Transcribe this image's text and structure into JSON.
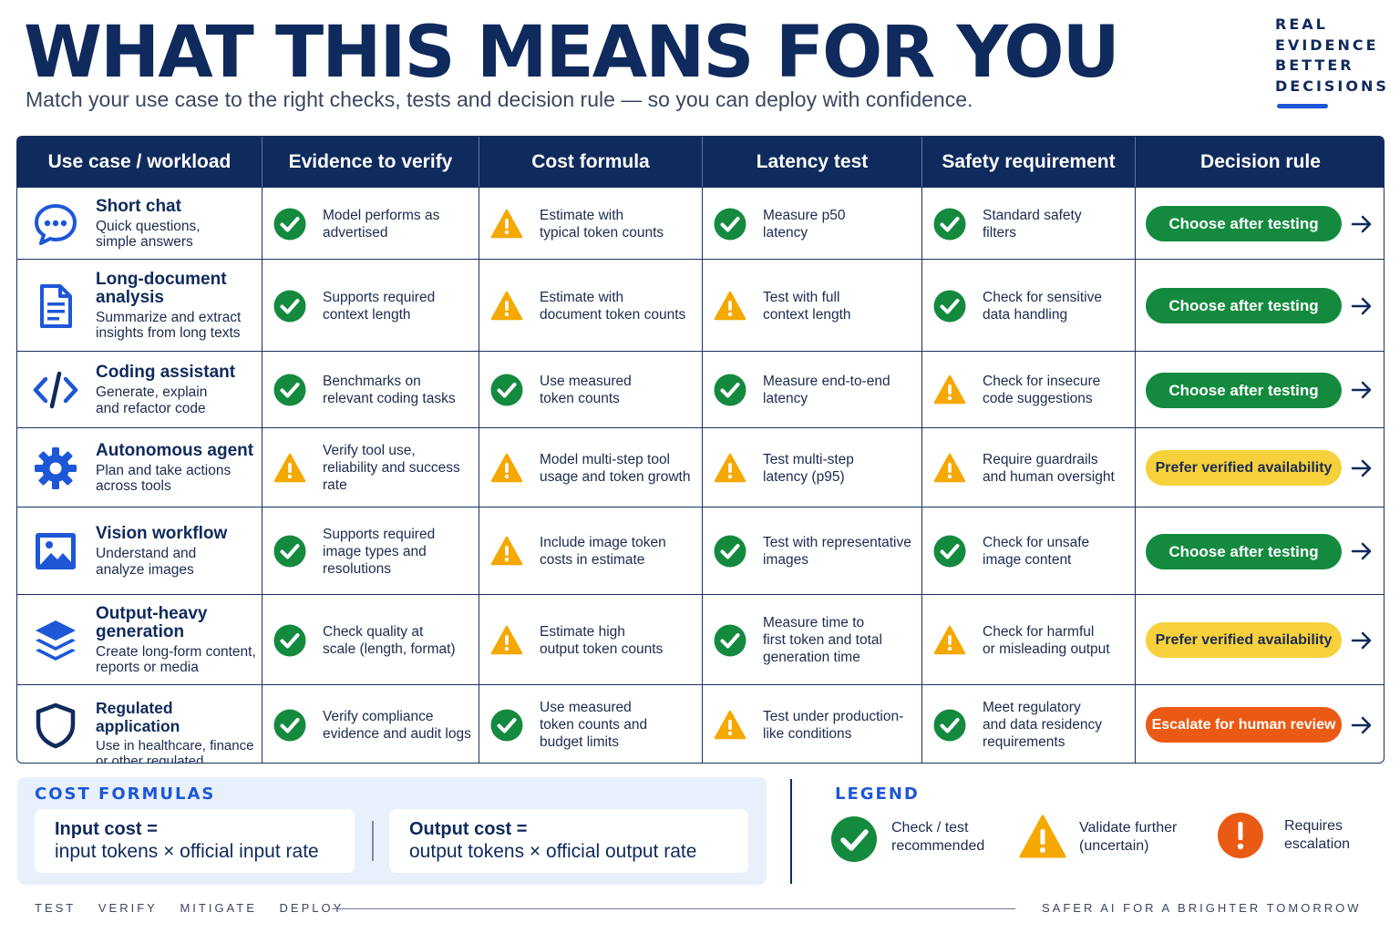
{
  "header": {
    "title": "WHAT THIS MEANS FOR YOU",
    "subtitle": "Match your use case to the right checks, tests and decision rule — so you can deploy with confidence.",
    "tagline": [
      "REAL",
      "EVIDENCE",
      "BETTER",
      "DECISIONS"
    ]
  },
  "columns": [
    "Use case  /  workload",
    "Evidence to verify",
    "Cost formula",
    "Latency test",
    "Safety requirement",
    "Decision rule"
  ],
  "rows": [
    {
      "icon": "chat-bubble-icon",
      "title": "Short chat",
      "description": [
        "Quick questions,",
        "simple answers"
      ],
      "evidence": {
        "status": "check",
        "text": [
          "Model performs as",
          "advertised"
        ]
      },
      "cost": {
        "status": "warning",
        "text": [
          "Estimate with",
          "typical token counts"
        ]
      },
      "latency": {
        "status": "check",
        "text": [
          "Measure p50",
          "latency"
        ]
      },
      "safety": {
        "status": "check",
        "text": [
          "Standard safety",
          "filters"
        ]
      },
      "decision": {
        "label": "Choose after testing",
        "level": "green"
      }
    },
    {
      "icon": "document-icon",
      "title": "Long-document analysis",
      "description": [
        "Summarize and extract",
        "insights from long texts"
      ],
      "evidence": {
        "status": "check",
        "text": [
          "Supports required",
          "context length"
        ]
      },
      "cost": {
        "status": "warning",
        "text": [
          "Estimate with",
          "document token counts"
        ]
      },
      "latency": {
        "status": "warning",
        "text": [
          "Test with full",
          "context length"
        ]
      },
      "safety": {
        "status": "check",
        "text": [
          "Check for sensitive",
          "data handling"
        ]
      },
      "decision": {
        "label": "Choose after testing",
        "level": "green"
      }
    },
    {
      "icon": "code-icon",
      "title": "Coding assistant",
      "description": [
        "Generate, explain",
        "and refactor code"
      ],
      "evidence": {
        "status": "check",
        "text": [
          "Benchmarks on",
          "relevant coding tasks"
        ]
      },
      "cost": {
        "status": "check",
        "text": [
          "Use measured",
          "token counts"
        ]
      },
      "latency": {
        "status": "check",
        "text": [
          "Measure end-to-end",
          "latency"
        ]
      },
      "safety": {
        "status": "warning",
        "text": [
          "Check for insecure",
          "code suggestions"
        ]
      },
      "decision": {
        "label": "Choose after testing",
        "level": "green"
      }
    },
    {
      "icon": "gear-icon",
      "title": "Autonomous agent",
      "description": [
        "Plan and take actions",
        "across tools"
      ],
      "evidence": {
        "status": "warning",
        "text": [
          "Verify tool use,",
          "reliability and success",
          "rate"
        ]
      },
      "cost": {
        "status": "warning",
        "text": [
          "Model multi-step tool",
          "usage and token growth"
        ]
      },
      "latency": {
        "status": "warning",
        "text": [
          "Test multi-step",
          "latency (p95)"
        ]
      },
      "safety": {
        "status": "warning",
        "text": [
          "Require guardrails",
          "and human oversight"
        ]
      },
      "decision": {
        "label": "Prefer verified availability",
        "level": "yellow"
      }
    },
    {
      "icon": "image-icon",
      "title": "Vision workflow",
      "description": [
        "Understand and",
        "analyze images"
      ],
      "evidence": {
        "status": "check",
        "text": [
          "Supports required",
          "image types and",
          "resolutions"
        ]
      },
      "cost": {
        "status": "warning",
        "text": [
          "Include image token",
          "costs in estimate"
        ]
      },
      "latency": {
        "status": "check",
        "text": [
          "Test with representative",
          "images"
        ]
      },
      "safety": {
        "status": "check",
        "text": [
          "Check for unsafe",
          "image content"
        ]
      },
      "decision": {
        "label": "Choose after testing",
        "level": "green"
      }
    },
    {
      "icon": "layers-icon",
      "title": "Output-heavy generation",
      "description": [
        "Create long-form content,",
        "reports or media"
      ],
      "evidence": {
        "status": "check",
        "text": [
          "Check quality at",
          "scale (length, format)"
        ]
      },
      "cost": {
        "status": "warning",
        "text": [
          "Estimate high",
          "output token counts"
        ]
      },
      "latency": {
        "status": "check",
        "text": [
          "Measure time to",
          "first token and total",
          "generation time"
        ]
      },
      "safety": {
        "status": "warning",
        "text": [
          "Check for harmful",
          "or misleading output"
        ]
      },
      "decision": {
        "label": "Prefer verified availability",
        "level": "yellow"
      }
    },
    {
      "icon": "shield-icon",
      "title": "Regulated application",
      "description": [
        "Use in healthcare, finance",
        "or other regulated domains"
      ],
      "evidence": {
        "status": "check",
        "text": [
          "Verify compliance",
          "evidence and audit logs"
        ]
      },
      "cost": {
        "status": "check",
        "text": [
          "Use measured",
          "token counts and",
          "budget limits"
        ]
      },
      "latency": {
        "status": "warning",
        "text": [
          "Test under production-",
          "like conditions"
        ]
      },
      "safety": {
        "status": "check",
        "text": [
          "Meet regulatory",
          "and data residency",
          "requirements"
        ]
      },
      "decision": {
        "label": "Escalate for human review",
        "level": "orange"
      }
    }
  ],
  "cost_formulas": {
    "title": "COST FORMULAS",
    "input_label": "Input cost =",
    "input_formula": "input tokens × official input rate",
    "output_label": "Output cost =",
    "output_formula": "output tokens × official output rate"
  },
  "legend": {
    "title": "LEGEND",
    "items": [
      {
        "icon": "check-circle-icon",
        "text": [
          "Check / test",
          "recommended"
        ]
      },
      {
        "icon": "warning-triangle-icon",
        "text": [
          "Validate further",
          "(uncertain)"
        ]
      },
      {
        "icon": "exclamation-circle-icon",
        "text": [
          "Requires",
          "escalation"
        ]
      }
    ]
  },
  "footer": {
    "left": [
      "TEST",
      "VERIFY",
      "MITIGATE",
      "DEPLOY"
    ],
    "right": "SAFER AI FOR A BRIGHTER TOMORROW"
  },
  "colors": {
    "navy": "#0f2a5c",
    "accent_blue": "#1d57d6",
    "check_green": "#148a3f",
    "warning_yellow": "#f5a800",
    "pill_yellow": "#f7d13b",
    "escalate_orange": "#ea5a15"
  }
}
